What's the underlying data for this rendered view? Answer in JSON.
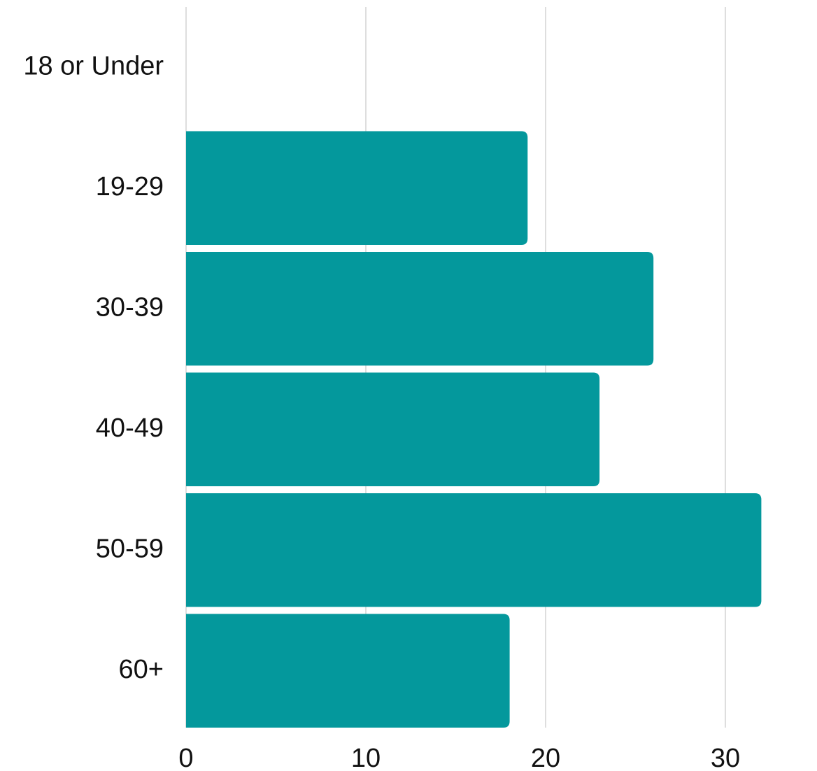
{
  "chart_data": {
    "type": "bar",
    "orientation": "horizontal",
    "title": "",
    "xlabel": "",
    "ylabel": "",
    "categories": [
      "18 or Under",
      "19-29",
      "30-39",
      "40-49",
      "50-59",
      "60+"
    ],
    "values": [
      0,
      19,
      26,
      23,
      32,
      18
    ],
    "xlim": [
      0,
      32.5
    ],
    "xticks": [
      0,
      10,
      20,
      30
    ],
    "xtick_labels": [
      "0",
      "10",
      "20",
      "30"
    ],
    "grid": true,
    "legend": "none",
    "bar_color": "#04989c",
    "grid_color": "#cccccc",
    "text_color": "#111111"
  }
}
